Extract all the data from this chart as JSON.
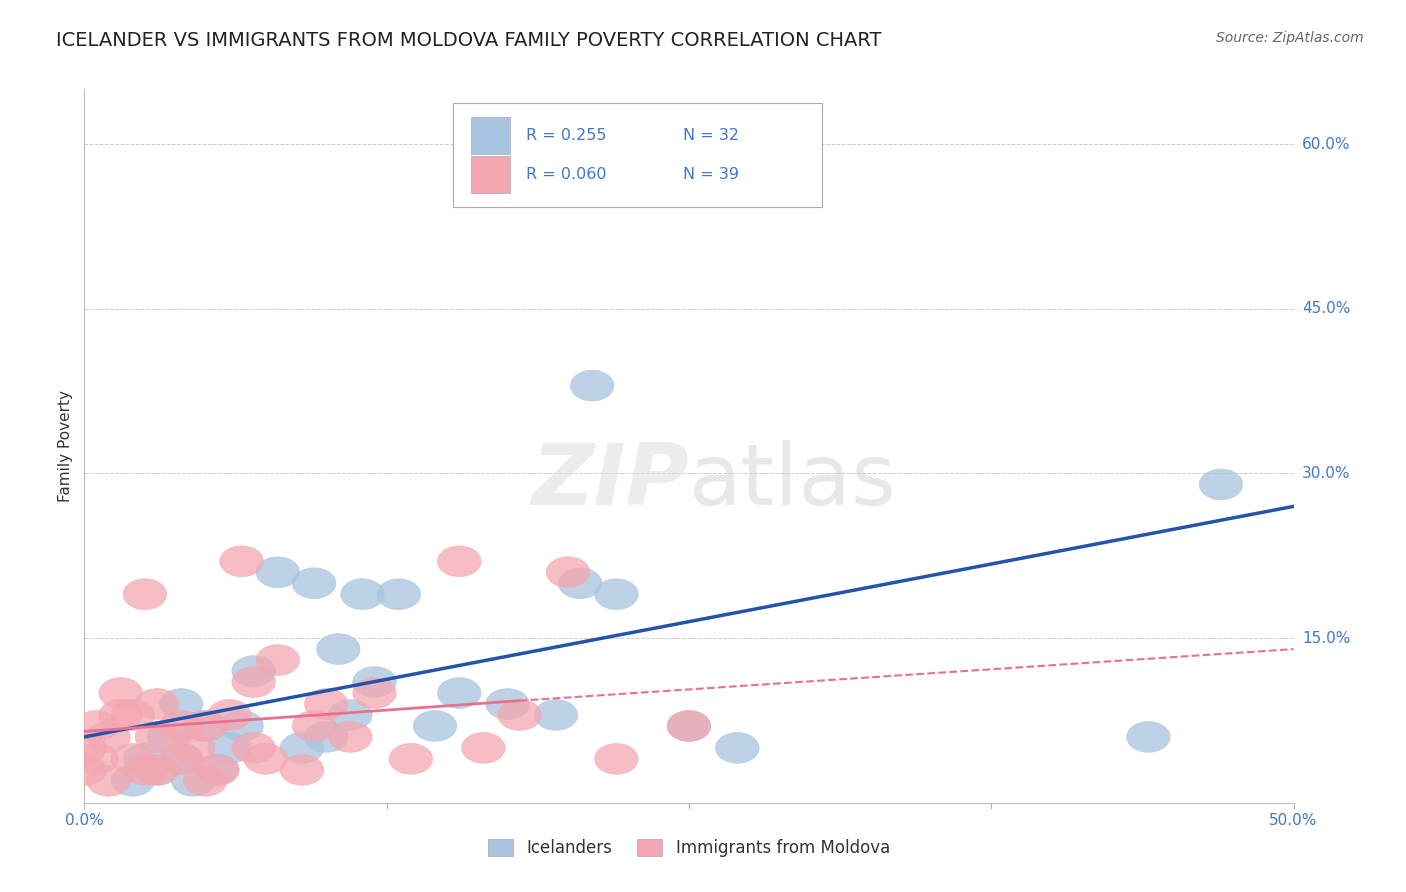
{
  "title": "ICELANDER VS IMMIGRANTS FROM MOLDOVA FAMILY POVERTY CORRELATION CHART",
  "source": "Source: ZipAtlas.com",
  "ylabel_label": "Family Poverty",
  "watermark": "ZIPatlas",
  "legend_r1": "R = 0.255",
  "legend_n1": "N = 32",
  "legend_r2": "R = 0.060",
  "legend_n2": "N = 39",
  "legend_label1": "Icelanders",
  "legend_label2": "Immigrants from Moldova",
  "blue_color": "#A8C4E0",
  "pink_color": "#F4A7B0",
  "blue_line_color": "#2255AA",
  "pink_line_color": "#E87090",
  "blue_scatter_x": [
    0.13,
    0.21,
    0.02,
    0.025,
    0.03,
    0.035,
    0.04,
    0.04,
    0.045,
    0.05,
    0.055,
    0.06,
    0.065,
    0.07,
    0.08,
    0.09,
    0.095,
    0.1,
    0.105,
    0.11,
    0.115,
    0.12,
    0.145,
    0.155,
    0.175,
    0.195,
    0.205,
    0.22,
    0.25,
    0.27,
    0.44,
    0.47
  ],
  "blue_scatter_y": [
    0.19,
    0.38,
    0.02,
    0.04,
    0.03,
    0.06,
    0.04,
    0.09,
    0.02,
    0.07,
    0.03,
    0.05,
    0.07,
    0.12,
    0.21,
    0.05,
    0.2,
    0.06,
    0.14,
    0.08,
    0.19,
    0.11,
    0.07,
    0.1,
    0.09,
    0.08,
    0.2,
    0.19,
    0.07,
    0.05,
    0.06,
    0.29
  ],
  "pink_scatter_x": [
    0.0,
    0.0,
    0.005,
    0.005,
    0.01,
    0.01,
    0.015,
    0.015,
    0.02,
    0.02,
    0.025,
    0.025,
    0.03,
    0.03,
    0.03,
    0.04,
    0.04,
    0.045,
    0.05,
    0.05,
    0.055,
    0.06,
    0.065,
    0.07,
    0.07,
    0.075,
    0.08,
    0.09,
    0.095,
    0.1,
    0.11,
    0.12,
    0.135,
    0.155,
    0.165,
    0.18,
    0.2,
    0.22,
    0.25
  ],
  "pink_scatter_y": [
    0.03,
    0.05,
    0.04,
    0.07,
    0.02,
    0.06,
    0.08,
    0.1,
    0.04,
    0.08,
    0.03,
    0.19,
    0.03,
    0.06,
    0.09,
    0.04,
    0.07,
    0.05,
    0.02,
    0.07,
    0.03,
    0.08,
    0.22,
    0.05,
    0.11,
    0.04,
    0.13,
    0.03,
    0.07,
    0.09,
    0.06,
    0.1,
    0.04,
    0.22,
    0.05,
    0.08,
    0.21,
    0.04,
    0.07
  ],
  "xlim": [
    0.0,
    0.5
  ],
  "ylim": [
    0.0,
    0.65
  ],
  "yticks_right": [
    0.6,
    0.45,
    0.3,
    0.15
  ],
  "y_tick_labels_right": [
    "60.0%",
    "45.0%",
    "30.0%",
    "15.0%"
  ],
  "xticks": [
    0.0,
    0.125,
    0.25,
    0.375,
    0.5
  ],
  "x_tick_labels": [
    "0.0%",
    "",
    "",
    "",
    "50.0%"
  ],
  "grid_color": "#CCCCCC",
  "background_color": "#FFFFFF",
  "title_fontsize": 14,
  "axis_label_fontsize": 11,
  "tick_fontsize": 11,
  "source_fontsize": 10
}
